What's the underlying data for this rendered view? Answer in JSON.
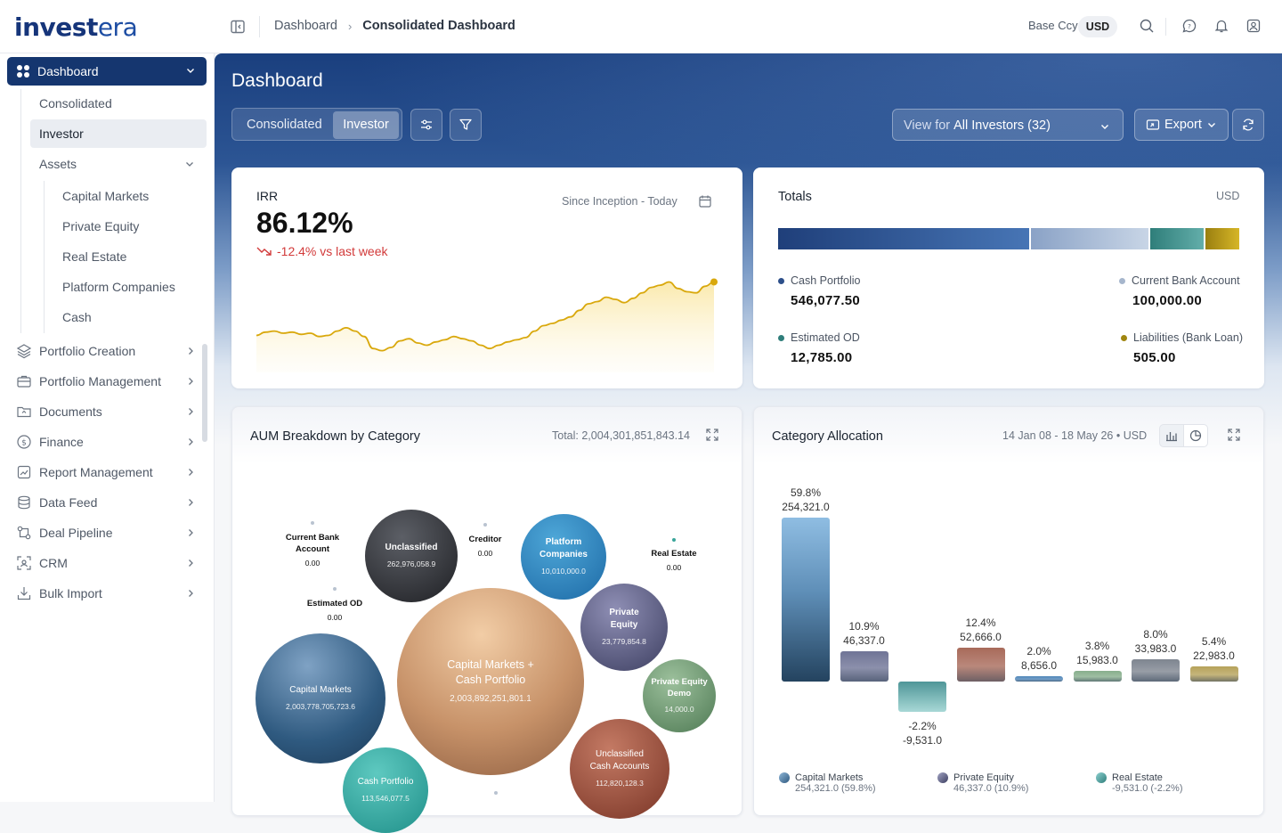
{
  "app": {
    "logo_main": "invest",
    "logo_accent": "era"
  },
  "header": {
    "breadcrumb": [
      "Dashboard",
      "Consolidated Dashboard"
    ],
    "base_ccy_label": "Base Ccy",
    "base_ccy_value": "USD"
  },
  "sidebar": {
    "dashboard_label": "Dashboard",
    "dashboard_sub": [
      "Consolidated",
      "Investor",
      "Assets"
    ],
    "assets_sub": [
      "Capital Markets",
      "Private Equity",
      "Real Estate",
      "Platform Companies",
      "Cash"
    ],
    "items": [
      {
        "label": "Portfolio Creation",
        "icon": "layers-icon"
      },
      {
        "label": "Portfolio Management",
        "icon": "briefcase-icon"
      },
      {
        "label": "Documents",
        "icon": "folder-icon"
      },
      {
        "label": "Finance",
        "icon": "dollar-icon"
      },
      {
        "label": "Report Management",
        "icon": "report-icon"
      },
      {
        "label": "Data Feed",
        "icon": "database-icon"
      },
      {
        "label": "Deal Pipeline",
        "icon": "pipeline-icon"
      },
      {
        "label": "CRM",
        "icon": "crm-icon"
      },
      {
        "label": "Bulk Import",
        "icon": "import-icon"
      }
    ]
  },
  "hero": {
    "title": "Dashboard",
    "tabs": [
      "Consolidated",
      "Investor"
    ],
    "view_for_label": "View for",
    "view_for_value": "All Investors (32)",
    "export_label": "Export"
  },
  "irr": {
    "title": "IRR",
    "value": "86.12%",
    "delta": "-12.4% vs last week",
    "range": "Since Inception - Today"
  },
  "totals": {
    "title": "Totals",
    "currency": "USD",
    "bar_colors": [
      "#2a5196",
      "#a9bcd8",
      "#3a8f8a",
      "#b59c18"
    ],
    "items": [
      {
        "label": "Cash Portfolio",
        "value": "546,077.50",
        "color": "#2d4f8a"
      },
      {
        "label": "Current Bank Account",
        "value": "100,000.00",
        "color": "#a6b6cc"
      },
      {
        "label": "Estimated OD",
        "value": "12,785.00",
        "color": "#2f7e7a"
      },
      {
        "label": "Liabilities (Bank Loan)",
        "value": "505.00",
        "color": "#a08610"
      }
    ]
  },
  "aum": {
    "title": "AUM Breakdown by Category",
    "total": "Total: 2,004,301,851,843.14",
    "bubbles": [
      {
        "name": "Unclassified",
        "value": "262,976,058.9"
      },
      {
        "name": "Platform Companies",
        "value": "10,010,000.0"
      },
      {
        "name": "Private Equity",
        "value": "23,779,854.8"
      },
      {
        "name": "Capital Markets + Cash Portfolio",
        "value": "2,003,892,251,801.1"
      },
      {
        "name": "Capital Markets",
        "value": "2,003,778,705,723.6"
      },
      {
        "name": "Private Equity Demo",
        "value": "14,000.0"
      },
      {
        "name": "Unclassified Cash Accounts",
        "value": "112,820,128.3"
      },
      {
        "name": "Cash Portfolio",
        "value": "113,546,077.5"
      }
    ],
    "zero_items": [
      {
        "name": "Current Bank Account",
        "value": "0.00"
      },
      {
        "name": "Creditor",
        "value": "0.00"
      },
      {
        "name": "Real Estate",
        "value": "0.00"
      },
      {
        "name": "Estimated OD",
        "value": "0.00"
      }
    ]
  },
  "category": {
    "title": "Category Allocation",
    "range": "14 Jan 08 - 18 May 26 • USD",
    "legend": [
      {
        "name": "Capital Markets",
        "detail": "254,321.0 (59.8%)"
      },
      {
        "name": "Private Equity",
        "detail": "46,337.0 (10.9%)"
      },
      {
        "name": "Real Estate",
        "detail": "-9,531.0 (-2.2%)"
      }
    ]
  },
  "chart_data": [
    {
      "type": "line",
      "title": "IRR",
      "x": [
        0,
        1,
        2,
        3,
        4,
        5,
        6,
        7,
        8,
        9,
        10,
        11,
        12,
        13,
        14,
        15,
        16,
        17,
        18,
        19,
        20,
        21,
        22,
        23,
        24,
        25,
        26,
        27,
        28,
        29,
        30,
        31,
        32,
        33,
        34,
        35,
        36,
        37,
        38,
        39,
        40,
        41,
        42,
        43,
        44,
        45,
        46,
        47,
        48,
        49,
        50,
        51
      ],
      "values": [
        29,
        32,
        33,
        31,
        32,
        30,
        31,
        28,
        29,
        33,
        36,
        33,
        28,
        17,
        15,
        18,
        24,
        26,
        22,
        20,
        23,
        25,
        28,
        26,
        24,
        20,
        17,
        20,
        23,
        25,
        27,
        33,
        38,
        40,
        43,
        46,
        52,
        58,
        60,
        64,
        62,
        59,
        63,
        68,
        73,
        75,
        78,
        72,
        69,
        68,
        74,
        78
      ],
      "series": [
        {
          "name": "IRR"
        }
      ],
      "last_point": "highlighted"
    },
    {
      "type": "bar",
      "title": "Category Allocation",
      "categories": [
        "Capital Markets",
        "Private Equity",
        "Real Estate",
        "",
        "",
        "",
        "",
        ""
      ],
      "values": [
        254321.0,
        46337.0,
        -9531.0,
        52666.0,
        8656.0,
        15983.0,
        33983.0,
        22983.0
      ],
      "percent_labels": [
        "59.8%",
        "10.9%",
        "-2.2%",
        "12.4%",
        "2.0%",
        "3.8%",
        "8.0%",
        "5.4%"
      ],
      "value_labels": [
        "254,321.0",
        "46,337.0",
        "-9,531.0",
        "52,666.0",
        "8,656.0",
        "15,983.0",
        "33,983.0",
        "22,983.0"
      ],
      "colors": [
        "#5f8fb8",
        "#6f7496",
        "#6aa9ad",
        "#a86a5a",
        "#4f86b9",
        "#87ae8c",
        "#7e8590",
        "#b6a25a"
      ]
    }
  ]
}
